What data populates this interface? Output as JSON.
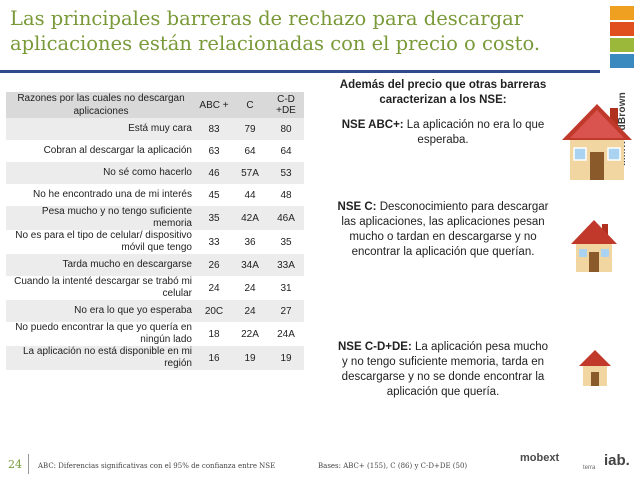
{
  "slide": {
    "title": "Las principales barreras de rechazo para descargar aplicaciones están relacionadas con el precio o costo.",
    "brand": "MillwardBrown",
    "page_number": "24"
  },
  "table": {
    "headers": [
      "Razones por las cuales no descargan aplicaciones",
      "ABC +",
      "C",
      "C-D +DE"
    ],
    "rows": [
      {
        "reason": "Está muy cara",
        "abc": "83",
        "c": "79",
        "cd": "80",
        "bold": []
      },
      {
        "reason": "Cobran al descargar la aplicación",
        "abc": "63",
        "c": "64",
        "cd": "64",
        "bold": []
      },
      {
        "reason": "No sé como hacerlo",
        "abc": "46",
        "c": "57A",
        "cd": "53",
        "bold": [
          "c"
        ]
      },
      {
        "reason": "No he encontrado una de mi interés",
        "abc": "45",
        "c": "44",
        "cd": "48",
        "bold": []
      },
      {
        "reason": "Pesa mucho y no tengo suficiente memoria",
        "abc": "35",
        "c": "42A",
        "cd": "46A",
        "bold": [
          "c",
          "cd"
        ]
      },
      {
        "reason": "No es para el tipo de celular/ dispositivo móvil que tengo",
        "abc": "33",
        "c": "36",
        "cd": "35",
        "bold": []
      },
      {
        "reason": "Tarda mucho en descargarse",
        "abc": "26",
        "c": "34A",
        "cd": "33A",
        "bold": [
          "c",
          "cd"
        ]
      },
      {
        "reason": "Cuando la intenté descargar se trabó mi celular",
        "abc": "24",
        "c": "24",
        "cd": "31",
        "bold": []
      },
      {
        "reason": "No era lo que yo esperaba",
        "abc": "20C",
        "c": "24",
        "cd": "27",
        "bold": [
          "abc"
        ]
      },
      {
        "reason": "No puedo encontrar la que yo quería en ningún lado",
        "abc": "18",
        "c": "22A",
        "cd": "24A",
        "bold": [
          "c",
          "cd"
        ]
      },
      {
        "reason": "La aplicación no está disponible en mi región",
        "abc": "16",
        "c": "19",
        "cd": "19",
        "bold": []
      }
    ]
  },
  "panels": {
    "intro": "Además del precio que otras barreras caracterizan a los NSE:",
    "abc_label": "NSE ABC+:",
    "abc_text": " La aplicación no era lo que esperaba.",
    "c_label": "NSE C:",
    "c_text": " Desconocimiento para descargar las aplicaciones, las aplicaciones pesan mucho o tardan en descargarse y no encontrar la aplicación que querían.",
    "cd_label": "NSE C-D+DE:",
    "cd_text": " La aplicación pesa mucho y no tengo suficiente memoria, tarda en descargarse y no se donde encontrar la aplicación que quería."
  },
  "footer": {
    "note": "ABC: Diferencias significativas con el 95% de confianza entre NSE",
    "bases": "Bases: ABC+ (155), C (86) y C-D+DE (50)",
    "logo_mobext": "mobext",
    "logo_terra": "terra",
    "logo_iab": "iab."
  },
  "colors": {
    "title_green": "#7a9a3a",
    "rule_blue": "#2f4a8a",
    "house_red": "#c0392b"
  }
}
